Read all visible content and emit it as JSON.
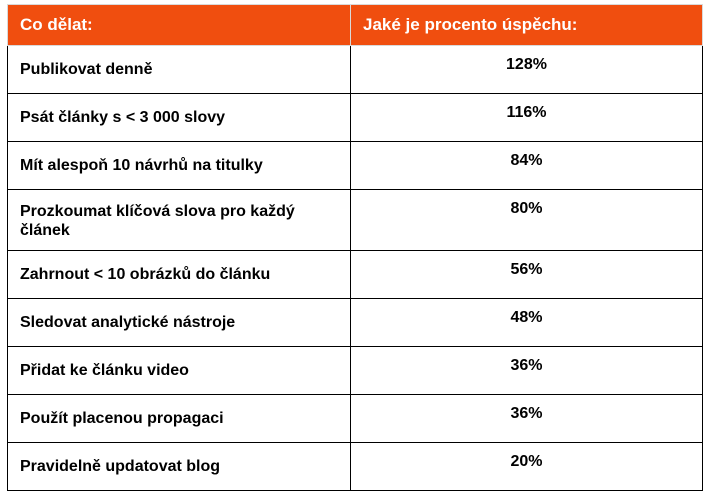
{
  "table": {
    "header": {
      "col1": "Co dělat:",
      "col2": "Jaké je procento úspěchu:"
    },
    "rows": [
      {
        "task": "Publikovat denně",
        "pct": "128%"
      },
      {
        "task": "Psát články s < 3 000 slovy",
        "pct": "116%"
      },
      {
        "task": "Mít alespoň 10 návrhů na titulky",
        "pct": "84%"
      },
      {
        "task": "Prozkoumat klíčová slova pro každý článek",
        "pct": "80%"
      },
      {
        "task": "Zahrnout < 10 obrázků do článku",
        "pct": "56%"
      },
      {
        "task": "Sledovat analytické nástroje",
        "pct": "48%"
      },
      {
        "task": "Přidat ke článku video",
        "pct": "36%"
      },
      {
        "task": "Použít placenou propagaci",
        "pct": "36%"
      },
      {
        "task": "Pravidelně updatovat blog",
        "pct": "20%"
      }
    ]
  },
  "colors": {
    "header_bg": "#f04e0f",
    "header_text": "#ffffff"
  }
}
